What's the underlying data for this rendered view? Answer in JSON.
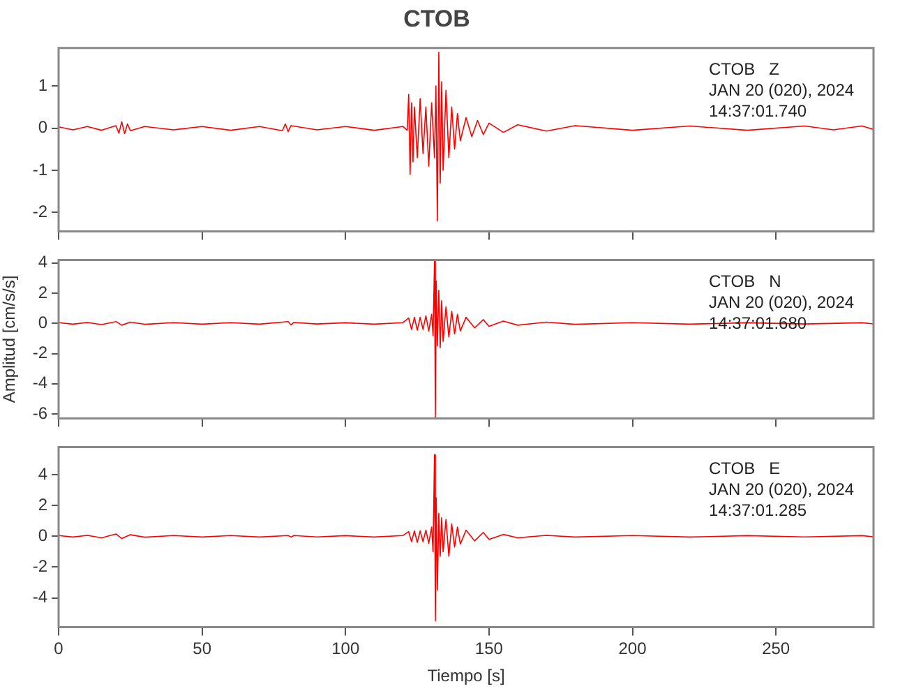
{
  "chart_data": [
    {
      "type": "line",
      "title": "CTOB",
      "annotations": [
        "CTOB   Z",
        "JAN 20 (020), 2024",
        "14:37:01.740"
      ],
      "tick_labels": "y",
      "marker": "none",
      "grid": false,
      "xlim": [
        0,
        284
      ],
      "xticks": [
        0,
        50,
        100,
        150,
        200,
        250
      ],
      "ylim": [
        -2.45,
        1.9
      ],
      "yticks": [
        -2,
        -1,
        0,
        1
      ],
      "x": [
        0,
        5,
        10,
        15,
        20,
        21,
        22,
        23,
        24,
        25,
        30,
        40,
        50,
        60,
        70,
        78,
        79,
        80,
        81,
        90,
        100,
        110,
        120,
        121.5,
        122,
        122.5,
        123,
        123.5,
        124,
        125,
        126,
        127,
        128,
        129,
        130,
        131,
        131.5,
        132,
        132.5,
        133,
        133.5,
        134,
        135,
        136,
        137,
        138,
        139,
        140,
        142,
        144,
        146,
        148,
        150,
        155,
        160,
        170,
        180,
        200,
        220,
        240,
        260,
        270,
        280,
        284
      ],
      "series": [
        {
          "color": "#ff0000",
          "values": [
            0.03,
            -0.04,
            0.04,
            -0.05,
            0.06,
            -0.12,
            0.15,
            -0.13,
            0.1,
            -0.06,
            0.04,
            -0.04,
            0.04,
            -0.05,
            0.04,
            -0.06,
            0.1,
            -0.08,
            0.06,
            -0.04,
            0.04,
            -0.05,
            0.04,
            -0.05,
            0.8,
            -1.1,
            0.6,
            -0.8,
            0.5,
            -0.7,
            0.7,
            -0.6,
            0.5,
            -0.9,
            0.6,
            -0.7,
            1.0,
            -2.2,
            1.8,
            -1.3,
            1.1,
            -1.0,
            0.9,
            -0.7,
            0.5,
            -0.5,
            0.35,
            -0.3,
            0.25,
            -0.2,
            0.18,
            -0.15,
            0.12,
            -0.1,
            0.08,
            -0.07,
            0.06,
            -0.05,
            0.05,
            -0.05,
            0.05,
            -0.04,
            0.05,
            -0.03
          ]
        }
      ]
    },
    {
      "type": "line",
      "ylabel": "Amplitud [cm/s/s]",
      "annotations": [
        "CTOB   N",
        "JAN 20 (020), 2024",
        "14:37:01.680"
      ],
      "tick_labels": "y",
      "marker": "none",
      "grid": false,
      "xlim": [
        0,
        284
      ],
      "xticks": [
        0,
        50,
        100,
        150,
        200,
        250
      ],
      "ylim": [
        -6.3,
        4.2
      ],
      "yticks": [
        -6,
        -4,
        -2,
        0,
        2,
        4
      ],
      "x": [
        0,
        5,
        10,
        15,
        20,
        22,
        25,
        30,
        40,
        50,
        60,
        70,
        80,
        81,
        82,
        90,
        100,
        110,
        120,
        122,
        123,
        124,
        125,
        126,
        127,
        128,
        129,
        130,
        130.5,
        131,
        131.3,
        131.6,
        132,
        132.5,
        133,
        133.5,
        134,
        135,
        136,
        137,
        138,
        139,
        140,
        142,
        145,
        148,
        150,
        155,
        160,
        170,
        180,
        200,
        220,
        240,
        260,
        280,
        284
      ],
      "series": [
        {
          "color": "#ff0000",
          "values": [
            0.05,
            -0.05,
            0.06,
            -0.08,
            0.12,
            -0.12,
            0.08,
            -0.06,
            0.05,
            -0.05,
            0.05,
            -0.05,
            0.12,
            -0.1,
            0.06,
            -0.04,
            0.04,
            -0.05,
            0.05,
            0.35,
            -0.4,
            0.4,
            -0.45,
            0.4,
            -0.4,
            0.5,
            -0.5,
            0.6,
            -0.8,
            4.1,
            -6.2,
            2.8,
            -1.5,
            2.2,
            -1.6,
            1.5,
            -1.2,
            1.1,
            -0.9,
            0.8,
            -0.7,
            0.6,
            -0.5,
            0.4,
            -0.3,
            0.25,
            -0.2,
            0.15,
            -0.12,
            0.08,
            -0.06,
            0.05,
            -0.05,
            0.04,
            -0.04,
            0.04,
            -0.03
          ]
        }
      ]
    },
    {
      "type": "line",
      "xlabel": "Tiempo [s]",
      "annotations": [
        "CTOB   E",
        "JAN 20 (020), 2024",
        "14:37:01.285"
      ],
      "marker": "none",
      "grid": false,
      "xlim": [
        0,
        284
      ],
      "xticks": [
        0,
        50,
        100,
        150,
        200,
        250
      ],
      "ylim": [
        -5.9,
        5.8
      ],
      "yticks": [
        -4,
        -2,
        0,
        2,
        4
      ],
      "x": [
        0,
        5,
        10,
        15,
        20,
        22,
        25,
        30,
        40,
        50,
        60,
        70,
        80,
        81,
        82,
        90,
        100,
        110,
        120,
        122,
        123,
        124,
        125,
        126,
        127,
        128,
        129,
        130,
        130.5,
        131,
        131.3,
        131.6,
        132,
        132.5,
        133,
        133.5,
        134,
        135,
        136,
        137,
        138,
        139,
        140,
        142,
        145,
        148,
        150,
        155,
        160,
        170,
        180,
        200,
        220,
        240,
        260,
        280,
        284
      ],
      "series": [
        {
          "color": "#ff0000",
          "values": [
            0.05,
            -0.05,
            0.06,
            -0.1,
            0.15,
            -0.15,
            0.1,
            -0.06,
            0.05,
            -0.05,
            0.05,
            -0.05,
            0.05,
            -0.05,
            0.05,
            -0.04,
            0.04,
            -0.05,
            0.05,
            0.3,
            -0.35,
            0.35,
            -0.4,
            0.35,
            -0.35,
            0.4,
            -0.45,
            0.6,
            -1.0,
            5.3,
            -5.5,
            2.5,
            -3.5,
            1.5,
            -1.3,
            1.2,
            -1.0,
            1.1,
            -1.3,
            0.8,
            -0.7,
            0.6,
            -0.5,
            0.4,
            -0.3,
            0.25,
            -0.2,
            0.12,
            -0.1,
            0.06,
            -0.05,
            0.05,
            -0.05,
            0.04,
            -0.04,
            0.04,
            -0.03
          ]
        }
      ]
    }
  ]
}
